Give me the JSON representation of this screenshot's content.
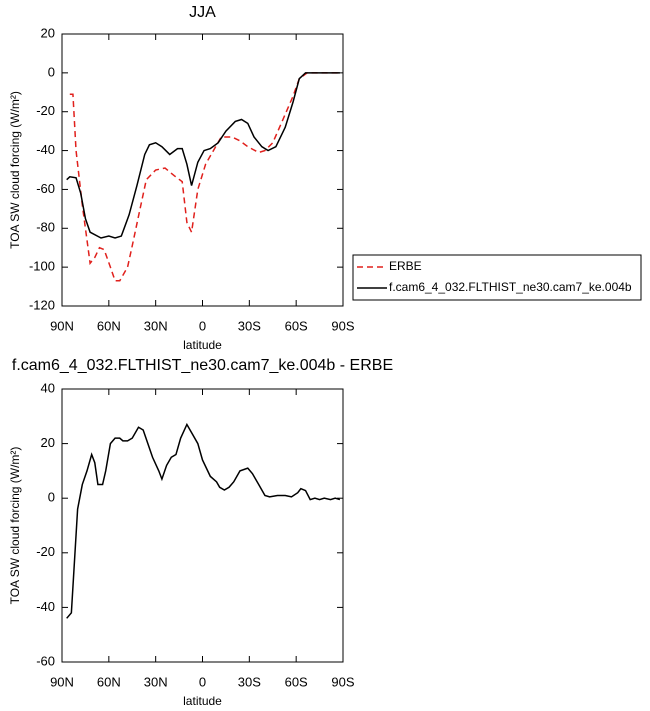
{
  "chart_data": [
    {
      "type": "line",
      "title": "JJA",
      "y_label": "TOA SW cloud forcing (W/m²)",
      "x_label": "latitude",
      "xlim": [
        90,
        -90
      ],
      "xticks": [
        {
          "value": 90,
          "label": "90N"
        },
        {
          "value": 60,
          "label": "60N"
        },
        {
          "value": 30,
          "label": "30N"
        },
        0,
        {
          "value": -30,
          "label": "30S"
        },
        {
          "value": -60,
          "label": "60S"
        },
        {
          "value": -90,
          "label": "90S"
        }
      ],
      "ylim": [
        -120,
        20
      ],
      "yticks": [
        20,
        0,
        -20,
        -40,
        -60,
        -80,
        -100,
        -120
      ],
      "legend": "right",
      "series": [
        {
          "name": "ERBE",
          "color": "#e0201c",
          "dash": true,
          "x": [
            85,
            83,
            81,
            77,
            72,
            69,
            66,
            63,
            59,
            56,
            53,
            48,
            45,
            40,
            36,
            30,
            24,
            18,
            13,
            10,
            7,
            3,
            -2,
            -7,
            -12,
            -19,
            -24,
            -29,
            -36,
            -40,
            -45,
            -51,
            -58,
            -62,
            -67,
            -88
          ],
          "values": [
            -11,
            -11,
            -40,
            -68,
            -98,
            -95,
            -90,
            -91,
            -100,
            -107,
            -107,
            -100,
            -89,
            -70,
            -55,
            -50,
            -49,
            -53,
            -56,
            -77,
            -82,
            -60,
            -47,
            -40,
            -33,
            -33,
            -35,
            -38,
            -41,
            -40,
            -36,
            -25,
            -12,
            -3,
            0,
            0
          ]
        },
        {
          "name": "f.cam6_4_032.FLTHIST_ne30.cam7_ke.004b",
          "color": "#000000",
          "dash": false,
          "x": [
            87,
            85,
            81,
            78,
            75,
            72,
            65,
            60,
            56,
            52,
            47,
            42,
            37,
            34,
            30,
            26,
            21,
            16,
            13,
            10,
            7,
            3,
            -1,
            -5,
            -10,
            -15,
            -21,
            -25,
            -29,
            -33,
            -38,
            -42,
            -47,
            -53,
            -58,
            -62,
            -66,
            -75,
            -88
          ],
          "values": [
            -55,
            -53.5,
            -54,
            -62,
            -75,
            -82,
            -85,
            -84,
            -85,
            -84,
            -73,
            -58,
            -42,
            -37,
            -36,
            -38,
            -42,
            -39,
            -39,
            -47,
            -58,
            -46,
            -40,
            -39,
            -36,
            -30,
            -25,
            -24,
            -26,
            -33,
            -38,
            -40,
            -38,
            -28,
            -15,
            -3,
            0,
            0,
            0
          ]
        }
      ]
    },
    {
      "type": "line",
      "title": "f.cam6_4_032.FLTHIST_ne30.cam7_ke.004b - ERBE",
      "y_label": "TOA SW cloud forcing (W/m²)",
      "x_label": "latitude",
      "xlim": [
        90,
        -90
      ],
      "xticks": [
        {
          "value": 90,
          "label": "90N"
        },
        {
          "value": 60,
          "label": "60N"
        },
        {
          "value": 30,
          "label": "30N"
        },
        0,
        {
          "value": -30,
          "label": "30S"
        },
        {
          "value": -60,
          "label": "60S"
        },
        {
          "value": -90,
          "label": "90S"
        }
      ],
      "ylim": [
        -60,
        40
      ],
      "yticks": [
        40,
        20,
        0,
        -20,
        -40,
        -60
      ],
      "series": [
        {
          "color": "#000000",
          "x": [
            87,
            84,
            80,
            77,
            74,
            71,
            69,
            67,
            64,
            62,
            59,
            56,
            53,
            51,
            48,
            45,
            41,
            38,
            35,
            32,
            28,
            26,
            23,
            20,
            17,
            14,
            10,
            7,
            3,
            0,
            -5,
            -9,
            -11,
            -14,
            -17,
            -20,
            -24,
            -29,
            -32,
            -36,
            -40,
            -43,
            -48,
            -53,
            -57,
            -61,
            -63,
            -66,
            -69,
            -72,
            -75,
            -78,
            -82,
            -85,
            -88
          ],
          "values": [
            -44,
            -42,
            -4,
            5,
            10,
            16,
            13,
            5,
            5,
            10,
            20,
            22,
            22,
            21,
            21,
            22,
            26,
            25,
            20,
            15,
            10,
            7,
            12,
            15,
            16,
            22,
            27,
            24,
            20,
            14,
            8,
            6,
            4,
            3,
            4,
            6,
            10,
            11,
            9,
            5,
            1,
            0.5,
            1,
            1,
            0.5,
            2,
            3.5,
            2.8,
            -0.5,
            0,
            -0.5,
            0,
            -0.5,
            0,
            -0.5
          ]
        }
      ]
    }
  ]
}
